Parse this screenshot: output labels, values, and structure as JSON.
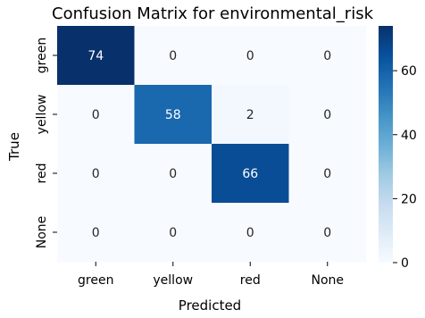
{
  "chart_data": {
    "type": "heatmap",
    "title": "Confusion Matrix for environmental_risk",
    "xlabel": "Predicted",
    "ylabel": "True",
    "x_categories": [
      "green",
      "yellow",
      "red",
      "None"
    ],
    "y_categories": [
      "green",
      "yellow",
      "red",
      "None"
    ],
    "values": [
      [
        74,
        0,
        0,
        0
      ],
      [
        0,
        58,
        2,
        0
      ],
      [
        0,
        0,
        66,
        0
      ],
      [
        0,
        0,
        0,
        0
      ]
    ],
    "colorbar": {
      "min": 0,
      "max": 74,
      "ticks": [
        0,
        20,
        40,
        60
      ],
      "tick_labels": [
        "0",
        "20",
        "40",
        "60"
      ]
    },
    "colormap": "Blues",
    "colors": {
      "low": "#f7fbff",
      "high": "#08306b"
    }
  }
}
